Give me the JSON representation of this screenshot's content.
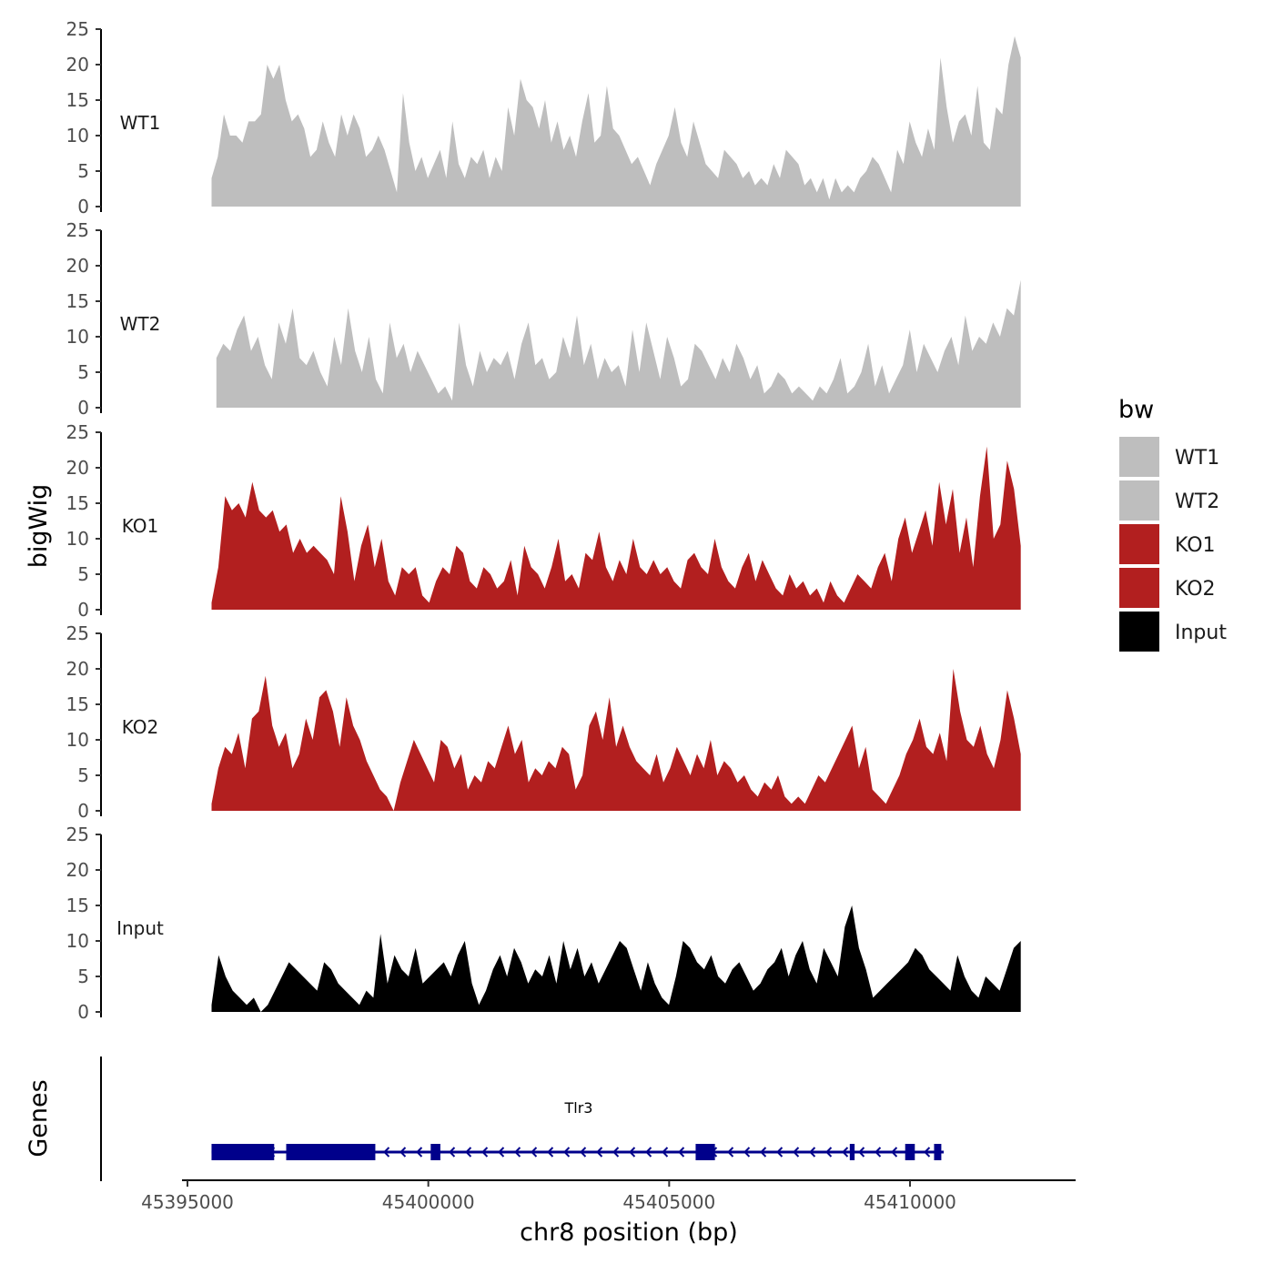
{
  "chart_data": {
    "type": "area",
    "ylabel": "bigWig",
    "xlabel": "chr8 position (bp)",
    "ylim": [
      0,
      25
    ],
    "yticks": [
      0,
      5,
      10,
      15,
      20,
      25
    ],
    "xlim": [
      45394700,
      45413100
    ],
    "xticks": [
      45395000,
      45400000,
      45405000,
      45410000
    ],
    "xtick_labels": [
      "45395000",
      "45400000",
      "45405000",
      "45410000"
    ],
    "tracks": [
      {
        "name": "WT1",
        "color": "#bebebe",
        "x_start": 45395500,
        "x_end": 45412300,
        "values": [
          4,
          7,
          13,
          10,
          10,
          9,
          12,
          12,
          13,
          20,
          18,
          20,
          15,
          12,
          13,
          11,
          7,
          8,
          12,
          9,
          7,
          13,
          10,
          13,
          11,
          7,
          8,
          10,
          8,
          5,
          2,
          16,
          9,
          5,
          7,
          4,
          6,
          8,
          4,
          12,
          6,
          4,
          7,
          6,
          8,
          4,
          7,
          5,
          14,
          10,
          18,
          15,
          14,
          11,
          15,
          9,
          12,
          8,
          10,
          7,
          12,
          16,
          9,
          10,
          17,
          11,
          10,
          8,
          6,
          7,
          5,
          3,
          6,
          8,
          10,
          14,
          9,
          7,
          12,
          9,
          6,
          5,
          4,
          8,
          7,
          6,
          4,
          5,
          3,
          4,
          3,
          6,
          4,
          8,
          7,
          6,
          3,
          4,
          2,
          4,
          1,
          4,
          2,
          3,
          2,
          4,
          5,
          7,
          6,
          4,
          2,
          8,
          6,
          12,
          9,
          7,
          11,
          8,
          21,
          14,
          9,
          12,
          13,
          10,
          17,
          9,
          8,
          14,
          13,
          20,
          24,
          21
        ]
      },
      {
        "name": "WT2",
        "color": "#bebebe",
        "x_start": 45395600,
        "x_end": 45412300,
        "values": [
          7,
          9,
          8,
          11,
          13,
          8,
          10,
          6,
          4,
          12,
          9,
          14,
          7,
          6,
          8,
          5,
          3,
          10,
          6,
          14,
          8,
          5,
          10,
          4,
          2,
          12,
          7,
          9,
          5,
          8,
          6,
          4,
          2,
          3,
          1,
          12,
          6,
          3,
          8,
          5,
          7,
          6,
          8,
          4,
          9,
          12,
          6,
          7,
          4,
          5,
          10,
          7,
          13,
          6,
          9,
          4,
          7,
          5,
          6,
          3,
          11,
          5,
          12,
          8,
          4,
          10,
          7,
          3,
          4,
          9,
          8,
          6,
          4,
          7,
          5,
          9,
          7,
          4,
          6,
          2,
          3,
          5,
          4,
          2,
          3,
          2,
          1,
          3,
          2,
          4,
          7,
          2,
          3,
          5,
          9,
          3,
          6,
          2,
          4,
          6,
          11,
          5,
          9,
          7,
          5,
          8,
          10,
          6,
          13,
          8,
          10,
          9,
          12,
          10,
          14,
          13,
          18
        ]
      },
      {
        "name": "KO1",
        "color": "#b21f1f",
        "x_start": 45395500,
        "x_end": 45412300,
        "values": [
          1,
          6,
          16,
          14,
          15,
          13,
          18,
          14,
          13,
          14,
          11,
          12,
          8,
          10,
          8,
          9,
          8,
          7,
          5,
          16,
          11,
          4,
          9,
          12,
          6,
          10,
          4,
          2,
          6,
          5,
          6,
          2,
          1,
          4,
          6,
          5,
          9,
          8,
          4,
          3,
          6,
          5,
          3,
          4,
          7,
          2,
          9,
          6,
          5,
          3,
          6,
          10,
          4,
          5,
          3,
          8,
          7,
          11,
          6,
          4,
          7,
          5,
          10,
          6,
          5,
          7,
          5,
          6,
          4,
          3,
          7,
          8,
          6,
          5,
          10,
          6,
          4,
          3,
          6,
          8,
          4,
          7,
          5,
          3,
          2,
          5,
          3,
          4,
          2,
          3,
          1,
          4,
          2,
          1,
          3,
          5,
          4,
          3,
          6,
          8,
          4,
          10,
          13,
          8,
          11,
          14,
          9,
          18,
          12,
          17,
          8,
          13,
          6,
          16,
          23,
          10,
          12,
          21,
          17,
          9
        ]
      },
      {
        "name": "KO2",
        "color": "#b21f1f",
        "x_start": 45395500,
        "x_end": 45412300,
        "values": [
          1,
          6,
          9,
          8,
          11,
          6,
          13,
          14,
          19,
          12,
          9,
          11,
          6,
          8,
          13,
          10,
          16,
          17,
          14,
          9,
          16,
          12,
          10,
          7,
          5,
          3,
          2,
          0,
          4,
          7,
          10,
          8,
          6,
          4,
          10,
          9,
          6,
          8,
          3,
          5,
          4,
          7,
          6,
          9,
          12,
          8,
          10,
          4,
          6,
          5,
          7,
          6,
          9,
          8,
          3,
          5,
          12,
          14,
          10,
          16,
          9,
          12,
          9,
          7,
          6,
          5,
          8,
          4,
          6,
          9,
          7,
          5,
          8,
          6,
          10,
          5,
          7,
          6,
          4,
          5,
          3,
          2,
          4,
          3,
          5,
          2,
          1,
          2,
          1,
          3,
          5,
          4,
          6,
          8,
          10,
          12,
          6,
          9,
          3,
          2,
          1,
          3,
          5,
          8,
          10,
          13,
          9,
          8,
          11,
          7,
          20,
          14,
          10,
          9,
          12,
          8,
          6,
          10,
          17,
          13,
          8
        ]
      },
      {
        "name": "Input",
        "color": "#000000",
        "x_start": 45395500,
        "x_end": 45412300,
        "values": [
          1,
          8,
          5,
          3,
          2,
          1,
          2,
          0,
          1,
          3,
          5,
          7,
          6,
          5,
          4,
          3,
          7,
          6,
          4,
          3,
          2,
          1,
          3,
          2,
          11,
          4,
          8,
          6,
          5,
          9,
          4,
          5,
          6,
          7,
          5,
          8,
          10,
          4,
          1,
          3,
          6,
          8,
          5,
          9,
          7,
          4,
          6,
          5,
          8,
          4,
          10,
          6,
          9,
          5,
          7,
          4,
          6,
          8,
          10,
          9,
          6,
          3,
          7,
          4,
          2,
          1,
          5,
          10,
          9,
          7,
          6,
          8,
          5,
          4,
          6,
          7,
          5,
          3,
          4,
          6,
          7,
          9,
          5,
          8,
          10,
          6,
          4,
          9,
          7,
          5,
          12,
          15,
          9,
          6,
          2,
          3,
          4,
          5,
          6,
          7,
          9,
          8,
          6,
          5,
          4,
          3,
          8,
          5,
          3,
          2,
          5,
          4,
          3,
          6,
          9,
          10
        ]
      }
    ],
    "legend": {
      "title": "bw",
      "position": "right",
      "entries": [
        {
          "label": "WT1",
          "color": "#bebebe"
        },
        {
          "label": "WT2",
          "color": "#bebebe"
        },
        {
          "label": "KO1",
          "color": "#b21f1f"
        },
        {
          "label": "KO2",
          "color": "#b21f1f"
        },
        {
          "label": "Input",
          "color": "#000000"
        }
      ]
    },
    "genes_track": {
      "title": "Genes",
      "color": "#00008b",
      "gene": {
        "name": "Tlr3",
        "strand": "-",
        "start": 45395500,
        "end": 45410700,
        "exons": [
          {
            "start": 45395500,
            "end": 45396800,
            "type": "utr"
          },
          {
            "start": 45397050,
            "end": 45398900,
            "type": "cds"
          },
          {
            "start": 45400050,
            "end": 45400250,
            "type": "cds"
          },
          {
            "start": 45405550,
            "end": 45405950,
            "type": "cds"
          },
          {
            "start": 45408750,
            "end": 45408850,
            "type": "cds"
          },
          {
            "start": 45409900,
            "end": 45410100,
            "type": "cds"
          },
          {
            "start": 45410500,
            "end": 45410650,
            "type": "cds"
          }
        ]
      }
    }
  }
}
